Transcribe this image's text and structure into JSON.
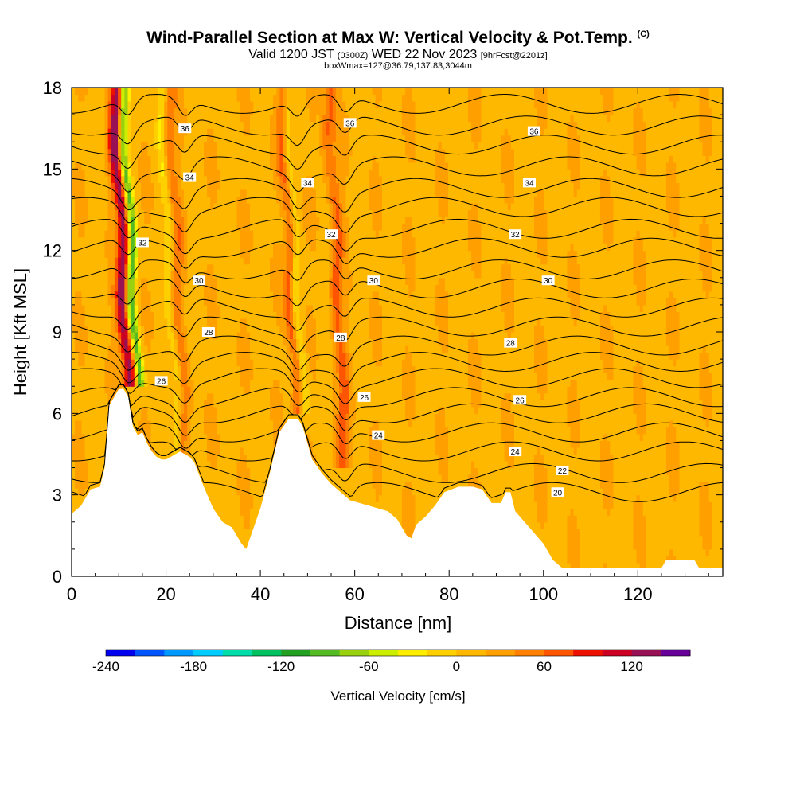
{
  "header": {
    "title": "Wind-Parallel Section at Max W: Vertical Velocity & Pot.Temp.",
    "copyright": "(C)",
    "subtitle_valid": "Valid 1200 JST",
    "subtitle_z": "(0300Z)",
    "subtitle_date": "WED 22 Nov 2023",
    "subtitle_fcst": "[9hrFcst@2201z]",
    "info": "boxWmax=127@36.79,137.83,3044m"
  },
  "chart_data": {
    "type": "heatmap",
    "xlabel": "Distance [nm]",
    "ylabel": "Height [Kft MSL]",
    "xlim": [
      0,
      138
    ],
    "ylim": [
      0,
      18
    ],
    "xticks": [
      0,
      20,
      40,
      60,
      80,
      100,
      120
    ],
    "yticks": [
      0,
      3,
      6,
      9,
      12,
      15,
      18
    ],
    "background_value_cm_s": 15,
    "updraft_bands": [
      {
        "x": 12,
        "z_bottom": 7,
        "z_top": 18,
        "w_max": 120
      },
      {
        "x": 48,
        "z_bottom": 6,
        "z_top": 18,
        "w_max": 70
      },
      {
        "x": 58,
        "z_bottom": 4,
        "z_top": 18,
        "w_max": 50
      },
      {
        "x": 24,
        "z_bottom": 4,
        "z_top": 18,
        "w_max": 40
      }
    ],
    "downdraft_bands": [
      {
        "x": 14,
        "z_bottom": 7,
        "z_top": 18,
        "w_min": -120
      },
      {
        "x": 49,
        "z_bottom": 6,
        "z_top": 18,
        "w_min": -70
      },
      {
        "x": 23,
        "z_bottom": 4,
        "z_top": 18,
        "w_min": -40
      }
    ],
    "terrain_height_kft": [
      [
        0,
        2.3
      ],
      [
        2,
        2.6
      ],
      [
        4,
        3.2
      ],
      [
        6,
        3.3
      ],
      [
        7,
        4
      ],
      [
        8,
        6.3
      ],
      [
        10,
        6.9
      ],
      [
        11,
        6.9
      ],
      [
        12,
        6.6
      ],
      [
        13,
        5.5
      ],
      [
        14,
        5.2
      ],
      [
        15,
        5.3
      ],
      [
        16,
        4.9
      ],
      [
        17,
        4.6
      ],
      [
        18,
        4.4
      ],
      [
        19,
        4.3
      ],
      [
        20,
        4.3
      ],
      [
        22,
        4.5
      ],
      [
        23,
        4.6
      ],
      [
        25,
        4.4
      ],
      [
        26,
        4.2
      ],
      [
        28,
        3.3
      ],
      [
        30,
        2.5
      ],
      [
        32,
        2.0
      ],
      [
        34,
        1.8
      ],
      [
        36,
        1.2
      ],
      [
        37,
        1.0
      ],
      [
        38,
        1.5
      ],
      [
        40,
        2.5
      ],
      [
        42,
        3.8
      ],
      [
        44,
        5.3
      ],
      [
        46,
        5.8
      ],
      [
        48,
        5.8
      ],
      [
        49,
        5.5
      ],
      [
        51,
        4.3
      ],
      [
        53,
        3.8
      ],
      [
        55,
        3.4
      ],
      [
        57,
        3.1
      ],
      [
        59,
        2.8
      ],
      [
        61,
        2.7
      ],
      [
        63,
        2.6
      ],
      [
        65,
        2.5
      ],
      [
        67,
        2.4
      ],
      [
        69,
        2.1
      ],
      [
        71,
        1.5
      ],
      [
        72,
        1.4
      ],
      [
        73,
        1.9
      ],
      [
        75,
        2.2
      ],
      [
        77,
        2.6
      ],
      [
        79,
        3.1
      ],
      [
        82,
        3.3
      ],
      [
        85,
        3.3
      ],
      [
        87,
        3.2
      ],
      [
        89,
        2.7
      ],
      [
        91,
        2.7
      ],
      [
        92,
        3.1
      ],
      [
        93,
        3.1
      ],
      [
        94,
        2.4
      ],
      [
        96,
        2.0
      ],
      [
        98,
        1.6
      ],
      [
        100,
        1.2
      ],
      [
        102,
        0.6
      ],
      [
        104,
        0.3
      ],
      [
        106,
        0.3
      ],
      [
        110,
        0.3
      ],
      [
        125,
        0.3
      ],
      [
        126,
        0.6
      ],
      [
        132,
        0.6
      ],
      [
        133,
        0.3
      ],
      [
        138,
        0.3
      ]
    ],
    "theta_levels_C": [
      20,
      22,
      24,
      26,
      28,
      30,
      32,
      34,
      36
    ],
    "theta_contour_heights_kft": [
      3.1,
      3.8,
      4.6,
      5.3,
      6.0,
      6.6,
      7.3,
      7.9,
      8.5,
      9.2,
      9.9,
      10.6,
      11.3,
      12.1,
      12.8,
      13.6,
      14.3,
      15.1,
      15.9,
      16.6,
      17.4
    ],
    "contour_labels": [
      {
        "text": "36",
        "x": 24,
        "z": 16.5
      },
      {
        "text": "36",
        "x": 59,
        "z": 16.7
      },
      {
        "text": "36",
        "x": 98,
        "z": 16.4
      },
      {
        "text": "34",
        "x": 25,
        "z": 14.7
      },
      {
        "text": "34",
        "x": 50,
        "z": 14.5
      },
      {
        "text": "34",
        "x": 97,
        "z": 14.5
      },
      {
        "text": "32",
        "x": 15,
        "z": 12.3
      },
      {
        "text": "32",
        "x": 55,
        "z": 12.6
      },
      {
        "text": "32",
        "x": 94,
        "z": 12.6
      },
      {
        "text": "30",
        "x": 27,
        "z": 10.9
      },
      {
        "text": "30",
        "x": 64,
        "z": 10.9
      },
      {
        "text": "30",
        "x": 101,
        "z": 10.9
      },
      {
        "text": "28",
        "x": 29,
        "z": 9.0
      },
      {
        "text": "28",
        "x": 57,
        "z": 8.8
      },
      {
        "text": "28",
        "x": 93,
        "z": 8.6
      },
      {
        "text": "26",
        "x": 19,
        "z": 7.2
      },
      {
        "text": "26",
        "x": 62,
        "z": 6.6
      },
      {
        "text": "26",
        "x": 95,
        "z": 6.5
      },
      {
        "text": "24",
        "x": 65,
        "z": 5.2
      },
      {
        "text": "24",
        "x": 94,
        "z": 4.6
      },
      {
        "text": "22",
        "x": 104,
        "z": 3.9
      },
      {
        "text": "20",
        "x": 103,
        "z": 3.1
      }
    ]
  },
  "colorbar": {
    "label": "Vertical Velocity [cm/s]",
    "min": -240,
    "max": 150,
    "step": 20,
    "ticks": [
      -240,
      -180,
      -120,
      -60,
      0,
      60,
      120
    ],
    "tick_labels": [
      "-240",
      "-180",
      "-120",
      "-60",
      "0",
      "60",
      "120"
    ],
    "colors": [
      "#0000ee",
      "#0055ff",
      "#0099ff",
      "#00ccff",
      "#00ddaa",
      "#00c060",
      "#22a022",
      "#55bb22",
      "#99d111",
      "#ccee00",
      "#ffee00",
      "#ffd000",
      "#ffb800",
      "#ffa000",
      "#ff8000",
      "#ff5500",
      "#ee1100",
      "#cc0022",
      "#991155",
      "#660099"
    ]
  }
}
